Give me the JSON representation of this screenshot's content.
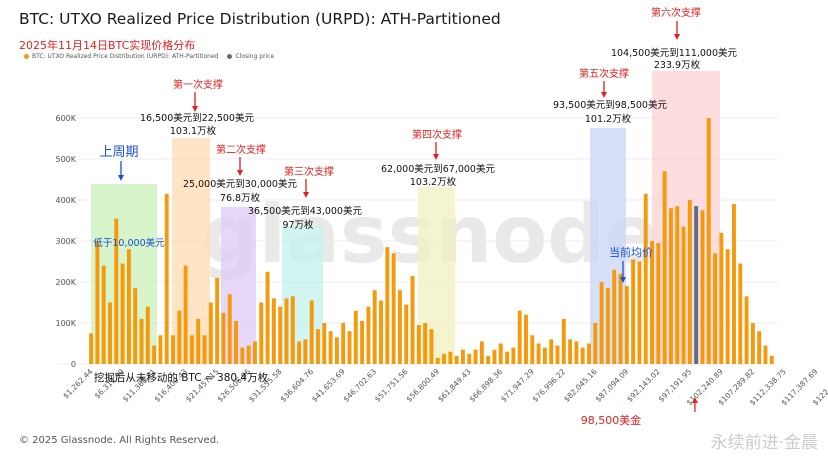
{
  "title": "BTC: UTXO Realized Price Distribution (URPD): ATH-Partitioned",
  "subtitle": "2025年11月14日BTC实现价格分布",
  "legend": {
    "series1": "BTC: UTXO Realized Price Distribution (URPD): ATH-Partitioned",
    "series2": "Closing price"
  },
  "footer": "© 2025 Glassnode. All Rights Reserved.",
  "watermark_text": "glassnode",
  "corner_watermark": "永续前进·金晨",
  "colors": {
    "bar": "#f59a0c",
    "closing": "#5a6e8c",
    "zone_green": "#c9f0b8",
    "zone_orange": "#ffdcb3",
    "zone_purple": "#ddc9f5",
    "zone_cyan": "#c4f2ec",
    "zone_yellow": "#f0f2be",
    "zone_blue": "#c8d6f7",
    "zone_red": "#fcd2d2"
  },
  "annotations": {
    "last_cycle": "上周期",
    "below_10k": "低于10,000美元",
    "support1_title": "第一次支撑",
    "support1_range": "16,500美元到22,500美元",
    "support1_amount": "103.1万枚",
    "support2_title": "第二次支撑",
    "support2_range": "25,000美元到30,000美元",
    "support2_amount": "76.8万枚",
    "support3_title": "第三次支撑",
    "support3_range": "36,500美元到43,000美元",
    "support3_amount": "97万枚",
    "support4_title": "第四次支撑",
    "support4_range": "62,000美元到67,000美元",
    "support4_amount": "103.2万枚",
    "support5_title": "第五次支撑",
    "support5_range": "93,500美元到98,500美元",
    "support5_amount": "101.2万枚",
    "support6_title": "第六次支撑",
    "support6_range": "104,500美元到111,000美元",
    "support6_amount": "233.9万枚",
    "current_avg": "当前均价",
    "mined_unmoved": "挖掘后从未移动的 BTC ≈ 380.4万枚",
    "price_label": "98,500美金"
  },
  "chart_data": {
    "type": "bar",
    "title": "BTC: UTXO Realized Price Distribution (URPD): ATH-Partitioned",
    "ylim": [
      0,
      650000
    ],
    "yticks": [
      "0",
      "100K",
      "200K",
      "300K",
      "400K",
      "500K",
      "600K"
    ],
    "x_tick_labels": [
      "$1,262.44",
      "$6,311.99",
      "$11,360.71",
      "$16,409.43",
      "$21,457.15",
      "$26,506.86",
      "$31,555.58",
      "$36,604.76",
      "$41,653.69",
      "$46,702.63",
      "$51,751.56",
      "$56,800.49",
      "$61,849.43",
      "$66,898.36",
      "$71,947.29",
      "$76,996.22",
      "$82,045.16",
      "$87,094.09",
      "$92,143.02",
      "$97,191.95",
      "$102,240.89",
      "$107,289.82",
      "$112,338.75",
      "$117,387.69",
      "$122,436.62"
    ],
    "x_start": 1262.44,
    "bin_width": 1009.75,
    "closing_price": 98500,
    "values": [
      75000,
      300000,
      240000,
      150000,
      355000,
      245000,
      280000,
      185000,
      110000,
      140000,
      45000,
      70000,
      415000,
      70000,
      130000,
      240000,
      70000,
      110000,
      70000,
      150000,
      210000,
      125000,
      170000,
      105000,
      40000,
      45000,
      55000,
      150000,
      225000,
      160000,
      140000,
      160000,
      165000,
      55000,
      60000,
      155000,
      85000,
      100000,
      80000,
      65000,
      100000,
      80000,
      130000,
      105000,
      140000,
      180000,
      155000,
      285000,
      270000,
      180000,
      145000,
      215000,
      95000,
      100000,
      85000,
      15000,
      25000,
      30000,
      20000,
      35000,
      25000,
      35000,
      55000,
      20000,
      35000,
      50000,
      30000,
      40000,
      130000,
      120000,
      70000,
      50000,
      40000,
      60000,
      45000,
      110000,
      60000,
      55000,
      40000,
      50000,
      100000,
      200000,
      185000,
      230000,
      220000,
      190000,
      255000,
      250000,
      415000,
      300000,
      295000,
      470000,
      380000,
      385000,
      335000,
      400000,
      385000,
      375000,
      600000,
      270000,
      320000,
      280000,
      390000,
      245000,
      165000,
      100000,
      80000,
      45000,
      20000
    ]
  }
}
